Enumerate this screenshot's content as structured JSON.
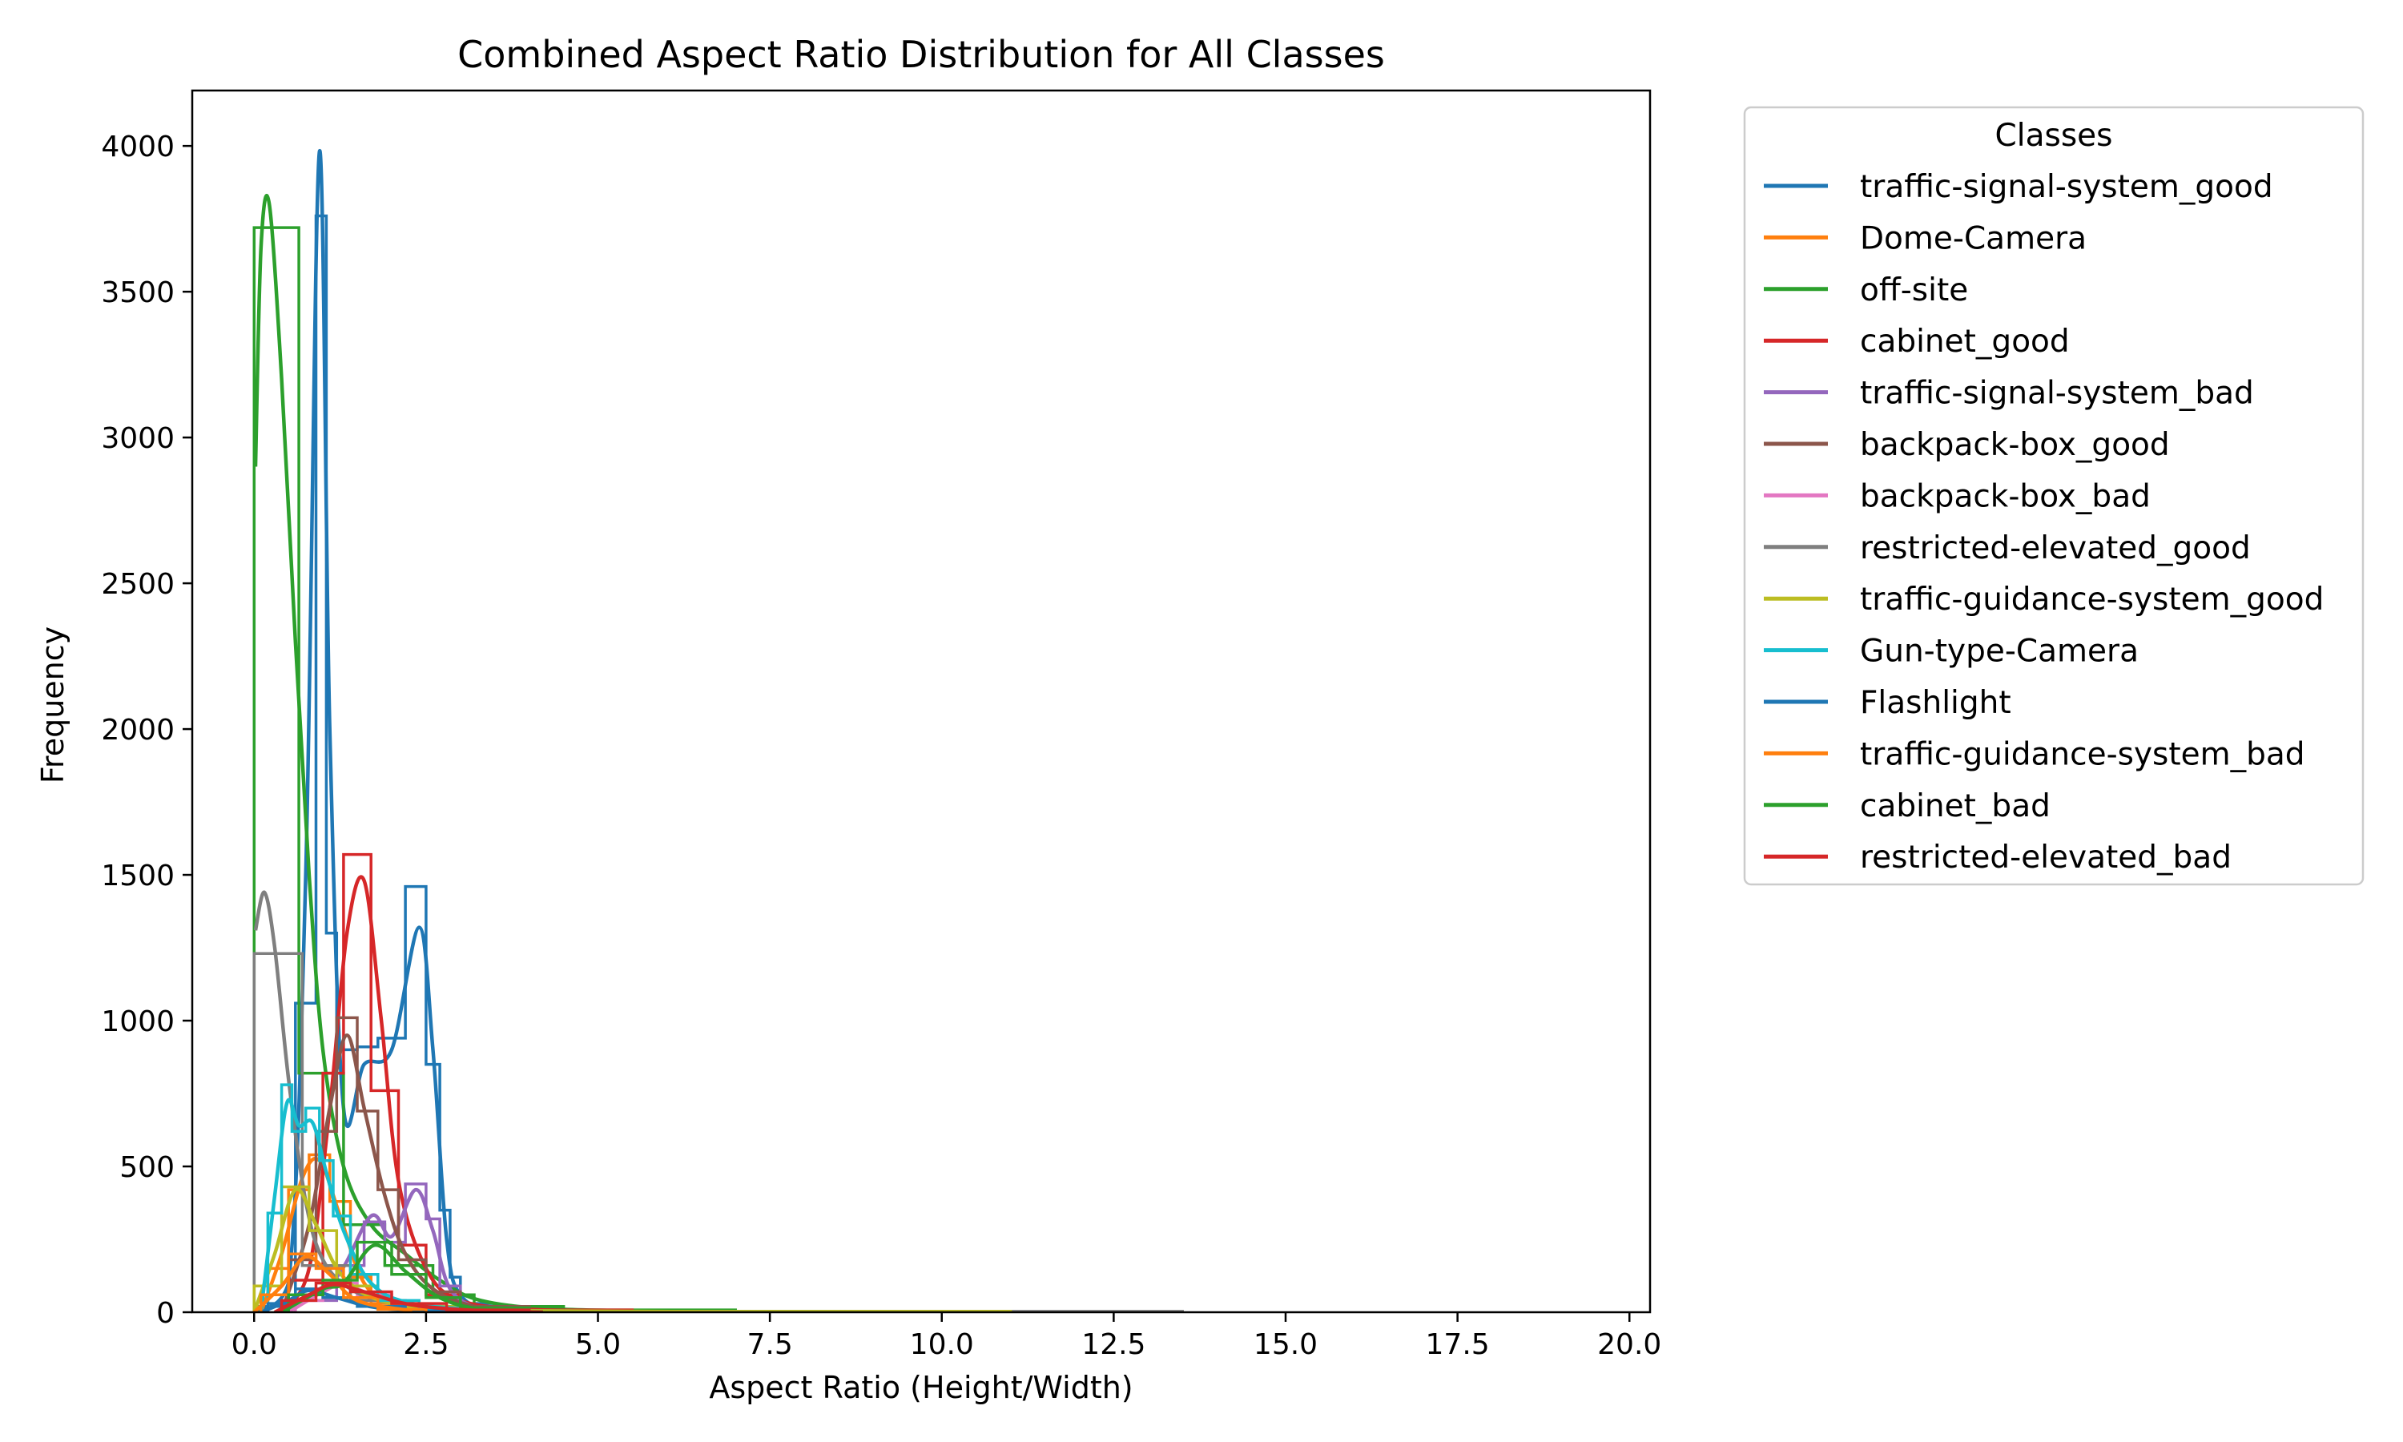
{
  "chart_data": {
    "type": "line",
    "title": "Combined Aspect Ratio Distribution for All Classes",
    "xlabel": "Aspect Ratio (Height/Width)",
    "ylabel": "Frequency",
    "xlim": [
      -0.9,
      20.3
    ],
    "ylim": [
      0,
      4190
    ],
    "xticks": [
      0.0,
      2.5,
      5.0,
      7.5,
      10.0,
      12.5,
      15.0,
      17.5,
      20.0
    ],
    "xtick_labels": [
      "0.0",
      "2.5",
      "5.0",
      "7.5",
      "10.0",
      "12.5",
      "15.0",
      "17.5",
      "20.0"
    ],
    "yticks": [
      0,
      500,
      1000,
      1500,
      2000,
      2500,
      3000,
      3500,
      4000
    ],
    "ytick_labels": [
      "0",
      "500",
      "1000",
      "1500",
      "2000",
      "2500",
      "3000",
      "3500",
      "4000"
    ],
    "grid": false,
    "legend": {
      "title": "Classes",
      "position": "outside-right"
    },
    "series": [
      {
        "name": "traffic-signal-system_good",
        "color": "#1f77b4",
        "hist": [
          [
            0.0,
            0.6,
            20
          ],
          [
            0.6,
            0.9,
            1060
          ],
          [
            0.9,
            1.05,
            3760
          ],
          [
            1.05,
            1.2,
            1300
          ],
          [
            1.2,
            1.5,
            900
          ],
          [
            1.5,
            1.8,
            910
          ],
          [
            1.8,
            2.2,
            940
          ],
          [
            2.2,
            2.5,
            1460
          ],
          [
            2.5,
            2.7,
            850
          ],
          [
            2.7,
            2.85,
            350
          ],
          [
            2.85,
            3.0,
            120
          ],
          [
            3.0,
            3.5,
            30
          ],
          [
            3.5,
            4.5,
            10
          ],
          [
            4.5,
            7.2,
            3
          ]
        ],
        "kde": [
          [
            0,
            0
          ],
          [
            0.5,
            100
          ],
          [
            0.75,
            1500
          ],
          [
            0.95,
            3980
          ],
          [
            1.1,
            2000
          ],
          [
            1.3,
            700
          ],
          [
            1.6,
            850
          ],
          [
            2.0,
            900
          ],
          [
            2.4,
            1320
          ],
          [
            2.6,
            900
          ],
          [
            2.8,
            250
          ],
          [
            3.0,
            60
          ],
          [
            3.5,
            15
          ],
          [
            5,
            4
          ],
          [
            7.2,
            1
          ]
        ]
      },
      {
        "name": "Dome-Camera",
        "color": "#ff7f0e",
        "hist": [
          [
            0.2,
            0.5,
            150
          ],
          [
            0.5,
            0.8,
            420
          ],
          [
            0.8,
            1.1,
            540
          ],
          [
            1.1,
            1.4,
            380
          ],
          [
            1.4,
            1.7,
            120
          ],
          [
            1.7,
            2.2,
            30
          ],
          [
            2.2,
            3.0,
            5
          ]
        ],
        "kde": [
          [
            0.1,
            0
          ],
          [
            0.4,
            200
          ],
          [
            0.7,
            460
          ],
          [
            0.95,
            520
          ],
          [
            1.25,
            330
          ],
          [
            1.6,
            100
          ],
          [
            2.1,
            20
          ],
          [
            3.0,
            0
          ]
        ]
      },
      {
        "name": "off-site",
        "color": "#2ca02c",
        "hist": [
          [
            0.0,
            0.65,
            3720
          ],
          [
            0.65,
            1.3,
            820
          ],
          [
            1.3,
            1.9,
            300
          ],
          [
            1.9,
            2.6,
            160
          ],
          [
            2.6,
            3.2,
            60
          ],
          [
            3.2,
            4.5,
            20
          ],
          [
            4.5,
            7.0,
            8
          ]
        ],
        "kde": [
          [
            0.02,
            2900
          ],
          [
            0.1,
            3650
          ],
          [
            0.22,
            3800
          ],
          [
            0.4,
            3200
          ],
          [
            0.6,
            2300
          ],
          [
            0.8,
            1500
          ],
          [
            1.0,
            900
          ],
          [
            1.3,
            500
          ],
          [
            1.7,
            300
          ],
          [
            2.2,
            200
          ],
          [
            2.7,
            110
          ],
          [
            3.3,
            40
          ],
          [
            4.5,
            10
          ],
          [
            7.0,
            2
          ]
        ]
      },
      {
        "name": "cabinet_good",
        "color": "#d62728",
        "hist": [
          [
            0.5,
            1.0,
            110
          ],
          [
            1.0,
            1.3,
            820
          ],
          [
            1.3,
            1.7,
            1570
          ],
          [
            1.7,
            2.1,
            760
          ],
          [
            2.1,
            2.5,
            230
          ],
          [
            2.5,
            3.0,
            60
          ],
          [
            3.0,
            4.0,
            20
          ],
          [
            4.0,
            5.5,
            8
          ]
        ],
        "kde": [
          [
            0.4,
            0
          ],
          [
            0.8,
            150
          ],
          [
            1.1,
            700
          ],
          [
            1.35,
            1300
          ],
          [
            1.6,
            1480
          ],
          [
            1.85,
            1000
          ],
          [
            2.1,
            450
          ],
          [
            2.5,
            150
          ],
          [
            3.0,
            40
          ],
          [
            4.0,
            10
          ],
          [
            5.5,
            2
          ]
        ]
      },
      {
        "name": "traffic-signal-system_bad",
        "color": "#9467bd",
        "hist": [
          [
            0.6,
            1.2,
            40
          ],
          [
            1.2,
            1.6,
            160
          ],
          [
            1.6,
            1.9,
            310
          ],
          [
            1.9,
            2.2,
            240
          ],
          [
            2.2,
            2.5,
            440
          ],
          [
            2.5,
            2.7,
            320
          ],
          [
            2.7,
            3.0,
            90
          ],
          [
            3.0,
            3.5,
            15
          ]
        ],
        "kde": [
          [
            0.5,
            0
          ],
          [
            1.2,
            120
          ],
          [
            1.7,
            330
          ],
          [
            2.0,
            260
          ],
          [
            2.35,
            420
          ],
          [
            2.6,
            280
          ],
          [
            2.85,
            80
          ],
          [
            3.3,
            10
          ],
          [
            3.8,
            0
          ]
        ]
      },
      {
        "name": "backpack-box_good",
        "color": "#8c564b",
        "hist": [
          [
            0.5,
            0.9,
            180
          ],
          [
            0.9,
            1.2,
            620
          ],
          [
            1.2,
            1.5,
            1010
          ],
          [
            1.5,
            1.8,
            690
          ],
          [
            1.8,
            2.1,
            420
          ],
          [
            2.1,
            2.5,
            180
          ],
          [
            2.5,
            3.0,
            70
          ],
          [
            3.0,
            4.0,
            20
          ]
        ],
        "kde": [
          [
            0.4,
            0
          ],
          [
            0.8,
            300
          ],
          [
            1.1,
            700
          ],
          [
            1.35,
            950
          ],
          [
            1.6,
            700
          ],
          [
            1.9,
            400
          ],
          [
            2.2,
            200
          ],
          [
            2.6,
            80
          ],
          [
            3.2,
            20
          ],
          [
            4.0,
            2
          ]
        ]
      },
      {
        "name": "backpack-box_bad",
        "color": "#e377c2",
        "hist": [
          [
            0.6,
            1.0,
            40
          ],
          [
            1.0,
            1.5,
            100
          ],
          [
            1.5,
            2.0,
            60
          ],
          [
            2.0,
            2.6,
            20
          ],
          [
            2.6,
            3.2,
            5
          ]
        ],
        "kde": [
          [
            0.5,
            0
          ],
          [
            1.0,
            70
          ],
          [
            1.3,
            95
          ],
          [
            1.7,
            60
          ],
          [
            2.2,
            20
          ],
          [
            3.0,
            0
          ]
        ]
      },
      {
        "name": "restricted-elevated_good",
        "color": "#7f7f7f",
        "hist": [
          [
            0.0,
            0.7,
            1230
          ],
          [
            0.7,
            1.4,
            160
          ],
          [
            1.4,
            2.2,
            40
          ],
          [
            2.2,
            3.5,
            10
          ],
          [
            3.5,
            13.5,
            3
          ]
        ],
        "kde": [
          [
            0.02,
            1310
          ],
          [
            0.15,
            1440
          ],
          [
            0.3,
            1250
          ],
          [
            0.5,
            800
          ],
          [
            0.75,
            380
          ],
          [
            1.0,
            180
          ],
          [
            1.4,
            80
          ],
          [
            2.0,
            30
          ],
          [
            3.0,
            10
          ],
          [
            6.0,
            2
          ],
          [
            13.5,
            0
          ]
        ]
      },
      {
        "name": "traffic-guidance-system_good",
        "color": "#bcbd22",
        "hist": [
          [
            0.0,
            0.4,
            90
          ],
          [
            0.4,
            0.8,
            430
          ],
          [
            0.8,
            1.2,
            280
          ],
          [
            1.2,
            1.8,
            90
          ],
          [
            1.8,
            3.0,
            20
          ],
          [
            3.0,
            11.0,
            3
          ]
        ],
        "kde": [
          [
            0.0,
            0
          ],
          [
            0.3,
            200
          ],
          [
            0.6,
            420
          ],
          [
            0.9,
            300
          ],
          [
            1.3,
            120
          ],
          [
            2.0,
            30
          ],
          [
            3.5,
            5
          ],
          [
            11.0,
            0
          ]
        ]
      },
      {
        "name": "Gun-type-Camera",
        "color": "#17becf",
        "hist": [
          [
            0.2,
            0.4,
            340
          ],
          [
            0.4,
            0.55,
            780
          ],
          [
            0.55,
            0.75,
            620
          ],
          [
            0.75,
            0.95,
            700
          ],
          [
            0.95,
            1.15,
            520
          ],
          [
            1.15,
            1.4,
            330
          ],
          [
            1.4,
            1.8,
            130
          ],
          [
            1.8,
            2.4,
            40
          ],
          [
            2.4,
            3.5,
            10
          ]
        ],
        "kde": [
          [
            0.1,
            0
          ],
          [
            0.3,
            400
          ],
          [
            0.48,
            720
          ],
          [
            0.65,
            640
          ],
          [
            0.85,
            650
          ],
          [
            1.05,
            480
          ],
          [
            1.3,
            280
          ],
          [
            1.7,
            100
          ],
          [
            2.3,
            30
          ],
          [
            3.5,
            5
          ]
        ]
      },
      {
        "name": "Flashlight",
        "color": "#1f77b4",
        "hist": [
          [
            0.2,
            0.6,
            30
          ],
          [
            0.6,
            1.0,
            80
          ],
          [
            1.0,
            1.5,
            50
          ],
          [
            1.5,
            2.2,
            20
          ],
          [
            2.2,
            3.0,
            5
          ]
        ],
        "kde": [
          [
            0.1,
            0
          ],
          [
            0.5,
            40
          ],
          [
            0.8,
            75
          ],
          [
            1.2,
            50
          ],
          [
            1.8,
            15
          ],
          [
            2.8,
            0
          ]
        ]
      },
      {
        "name": "traffic-guidance-system_bad",
        "color": "#ff7f0e",
        "hist": [
          [
            0.1,
            0.5,
            60
          ],
          [
            0.5,
            0.9,
            200
          ],
          [
            0.9,
            1.3,
            150
          ],
          [
            1.3,
            1.8,
            50
          ],
          [
            1.8,
            2.5,
            10
          ]
        ],
        "kde": [
          [
            0.0,
            0
          ],
          [
            0.4,
            90
          ],
          [
            0.75,
            190
          ],
          [
            1.1,
            130
          ],
          [
            1.5,
            40
          ],
          [
            2.3,
            5
          ]
        ]
      },
      {
        "name": "cabinet_bad",
        "color": "#2ca02c",
        "hist": [
          [
            0.5,
            1.0,
            60
          ],
          [
            1.0,
            1.5,
            110
          ],
          [
            1.5,
            2.0,
            240
          ],
          [
            2.0,
            2.5,
            130
          ],
          [
            2.5,
            3.0,
            50
          ],
          [
            3.0,
            4.0,
            15
          ]
        ],
        "kde": [
          [
            0.4,
            0
          ],
          [
            1.0,
            80
          ],
          [
            1.3,
            100
          ],
          [
            1.75,
            230
          ],
          [
            2.2,
            140
          ],
          [
            2.7,
            50
          ],
          [
            3.3,
            10
          ],
          [
            4.2,
            0
          ]
        ]
      },
      {
        "name": "restricted-elevated_bad",
        "color": "#d62728",
        "hist": [
          [
            0.4,
            0.9,
            40
          ],
          [
            0.9,
            1.4,
            100
          ],
          [
            1.4,
            2.0,
            70
          ],
          [
            2.0,
            2.8,
            30
          ],
          [
            2.8,
            4.0,
            8
          ]
        ],
        "kde": [
          [
            0.3,
            0
          ],
          [
            0.8,
            60
          ],
          [
            1.15,
            95
          ],
          [
            1.6,
            70
          ],
          [
            2.3,
            25
          ],
          [
            3.3,
            5
          ],
          [
            4.2,
            0
          ]
        ]
      }
    ]
  }
}
